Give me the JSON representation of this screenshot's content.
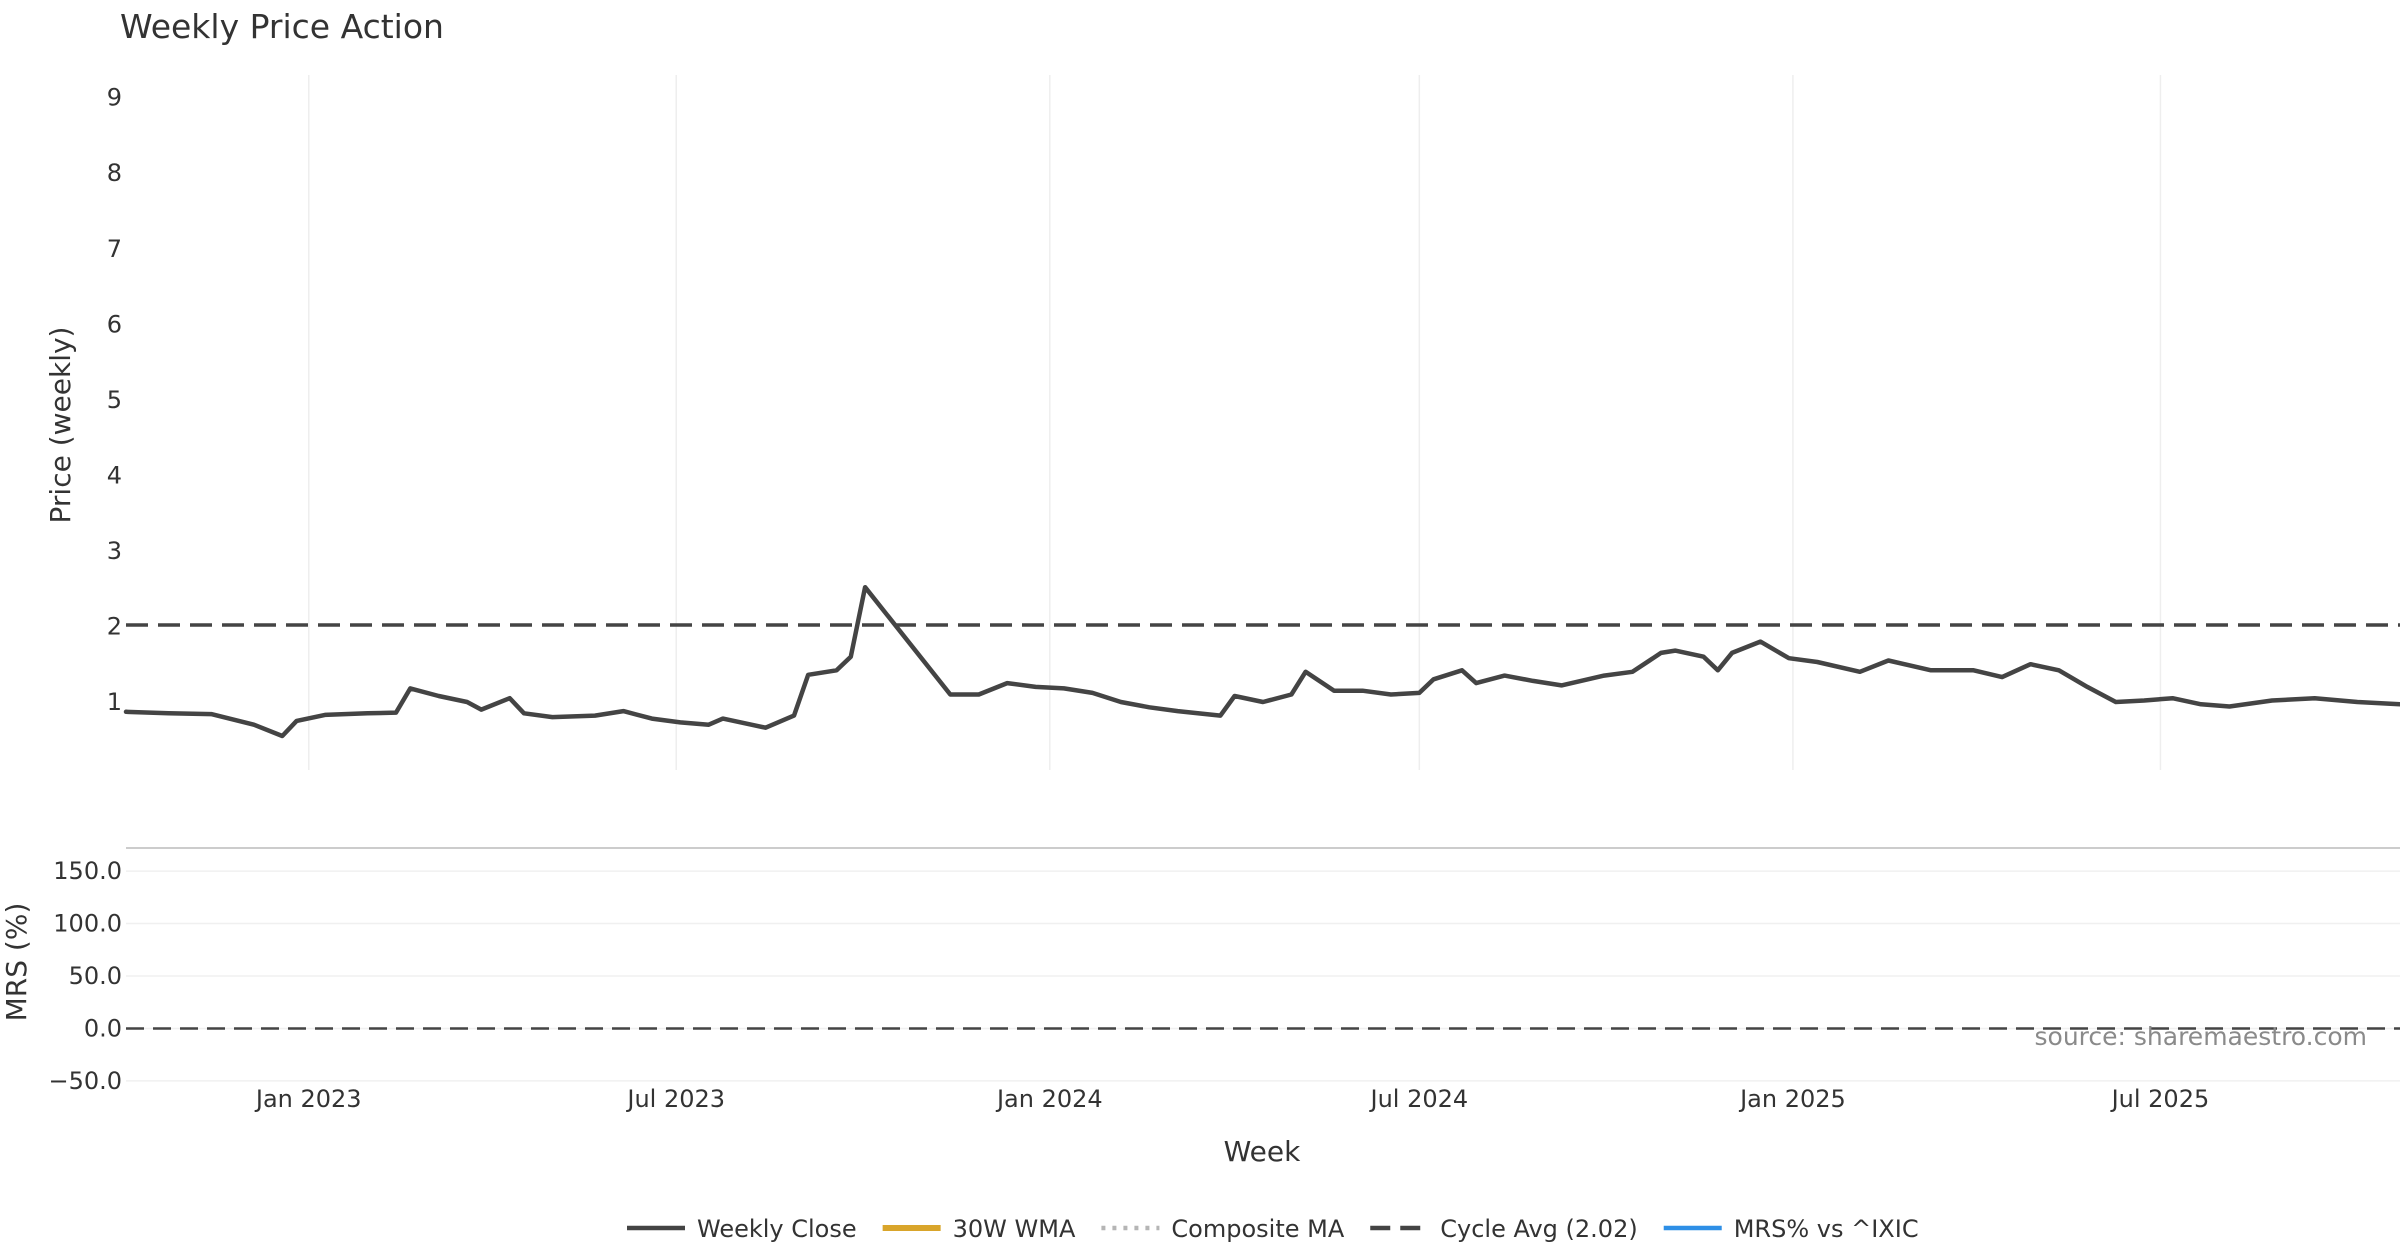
{
  "chart_data": {
    "type": "line",
    "title": "Weekly Price Action",
    "xlabel": "Week",
    "source": "source: sharemaestro.com",
    "x_ticks": [
      "Jan 2023",
      "Jul 2023",
      "Jan 2024",
      "Jul 2024",
      "Jan 2025",
      "Jul 2025"
    ],
    "x_start": "2022-10-03",
    "x_end": "2025-10-27",
    "price_panel": {
      "ylabel": "Price (weekly)",
      "ylim": [
        0.1,
        9.3
      ],
      "y_ticks": [
        "1",
        "2",
        "3",
        "4",
        "5",
        "6",
        "7",
        "8",
        "9"
      ],
      "cycle_avg": 2.02,
      "series": [
        {
          "name": "Weekly Close",
          "color": "#444444",
          "style": "solid",
          "points": [
            [
              "2022-10-03",
              0.87
            ],
            [
              "2022-10-24",
              0.85
            ],
            [
              "2022-11-14",
              0.84
            ],
            [
              "2022-12-05",
              0.7
            ],
            [
              "2022-12-19",
              0.55
            ],
            [
              "2022-12-26",
              0.75
            ],
            [
              "2023-01-09",
              0.83
            ],
            [
              "2023-01-30",
              0.85
            ],
            [
              "2023-02-13",
              0.86
            ],
            [
              "2023-02-20",
              1.18
            ],
            [
              "2023-03-06",
              1.08
            ],
            [
              "2023-03-20",
              1.0
            ],
            [
              "2023-03-27",
              0.9
            ],
            [
              "2023-04-10",
              1.05
            ],
            [
              "2023-04-17",
              0.85
            ],
            [
              "2023-05-01",
              0.8
            ],
            [
              "2023-05-22",
              0.82
            ],
            [
              "2023-06-05",
              0.88
            ],
            [
              "2023-06-19",
              0.78
            ],
            [
              "2023-07-03",
              0.73
            ],
            [
              "2023-07-17",
              0.7
            ],
            [
              "2023-07-24",
              0.78
            ],
            [
              "2023-08-07",
              0.7
            ],
            [
              "2023-08-14",
              0.66
            ],
            [
              "2023-08-28",
              0.82
            ],
            [
              "2023-09-04",
              1.36
            ],
            [
              "2023-09-18",
              1.42
            ],
            [
              "2023-09-25",
              1.6
            ],
            [
              "2023-10-02",
              2.52
            ],
            [
              "2023-11-13",
              1.1
            ],
            [
              "2023-11-27",
              1.1
            ],
            [
              "2023-12-11",
              1.25
            ],
            [
              "2023-12-25",
              1.2
            ],
            [
              "2024-01-08",
              1.18
            ],
            [
              "2024-01-22",
              1.12
            ],
            [
              "2024-02-05",
              1.0
            ],
            [
              "2024-02-19",
              0.93
            ],
            [
              "2024-03-04",
              0.88
            ],
            [
              "2024-03-25",
              0.82
            ],
            [
              "2024-04-01",
              1.08
            ],
            [
              "2024-04-15",
              1.0
            ],
            [
              "2024-04-29",
              1.1
            ],
            [
              "2024-05-06",
              1.4
            ],
            [
              "2024-05-20",
              1.15
            ],
            [
              "2024-06-03",
              1.15
            ],
            [
              "2024-06-17",
              1.1
            ],
            [
              "2024-07-01",
              1.12
            ],
            [
              "2024-07-08",
              1.3
            ],
            [
              "2024-07-22",
              1.42
            ],
            [
              "2024-07-29",
              1.25
            ],
            [
              "2024-08-12",
              1.35
            ],
            [
              "2024-08-26",
              1.28
            ],
            [
              "2024-09-09",
              1.22
            ],
            [
              "2024-09-30",
              1.35
            ],
            [
              "2024-10-14",
              1.4
            ],
            [
              "2024-10-28",
              1.65
            ],
            [
              "2024-11-04",
              1.68
            ],
            [
              "2024-11-18",
              1.6
            ],
            [
              "2024-11-25",
              1.42
            ],
            [
              "2024-12-02",
              1.65
            ],
            [
              "2024-12-16",
              1.8
            ],
            [
              "2024-12-30",
              1.58
            ],
            [
              "2025-01-13",
              1.53
            ],
            [
              "2025-02-03",
              1.4
            ],
            [
              "2025-02-17",
              1.55
            ],
            [
              "2025-03-10",
              1.42
            ],
            [
              "2025-03-31",
              1.42
            ],
            [
              "2025-04-14",
              1.33
            ],
            [
              "2025-04-28",
              1.5
            ],
            [
              "2025-05-12",
              1.42
            ],
            [
              "2025-05-26",
              1.2
            ],
            [
              "2025-06-09",
              1.0
            ],
            [
              "2025-06-23",
              1.02
            ],
            [
              "2025-07-07",
              1.05
            ],
            [
              "2025-07-21",
              0.97
            ],
            [
              "2025-08-04",
              0.94
            ],
            [
              "2025-08-25",
              1.02
            ],
            [
              "2025-09-15",
              1.05
            ],
            [
              "2025-10-06",
              1.0
            ],
            [
              "2025-10-27",
              0.97
            ]
          ]
        },
        {
          "name": "30W WMA",
          "color": "#D9A52B",
          "style": "solid",
          "points": []
        },
        {
          "name": "Composite MA",
          "color": "#B5B5B5",
          "style": "dotted",
          "points": []
        }
      ],
      "markers": []
    },
    "mrs_panel": {
      "ylabel": "MRS (%)",
      "ylim": [
        -52,
        172
      ],
      "y_ticks": [
        "150.0",
        "100.0",
        "50.0",
        "0.0",
        "−50.0"
      ],
      "series": [
        {
          "name": "MRS% vs ^IXIC",
          "color": "#2E8FE6",
          "points": []
        }
      ]
    },
    "legend": [
      {
        "label": "Weekly Close",
        "style": "solid",
        "color": "#444444"
      },
      {
        "label": "30W WMA",
        "style": "solid-thick",
        "color": "#D9A52B"
      },
      {
        "label": "Composite MA",
        "style": "dotted",
        "color": "#B5B5B5"
      },
      {
        "label": "Cycle Avg (2.02)",
        "style": "dashed",
        "color": "#444444"
      },
      {
        "label": "MRS% vs ^IXIC",
        "style": "solid",
        "color": "#2E8FE6"
      }
    ]
  }
}
